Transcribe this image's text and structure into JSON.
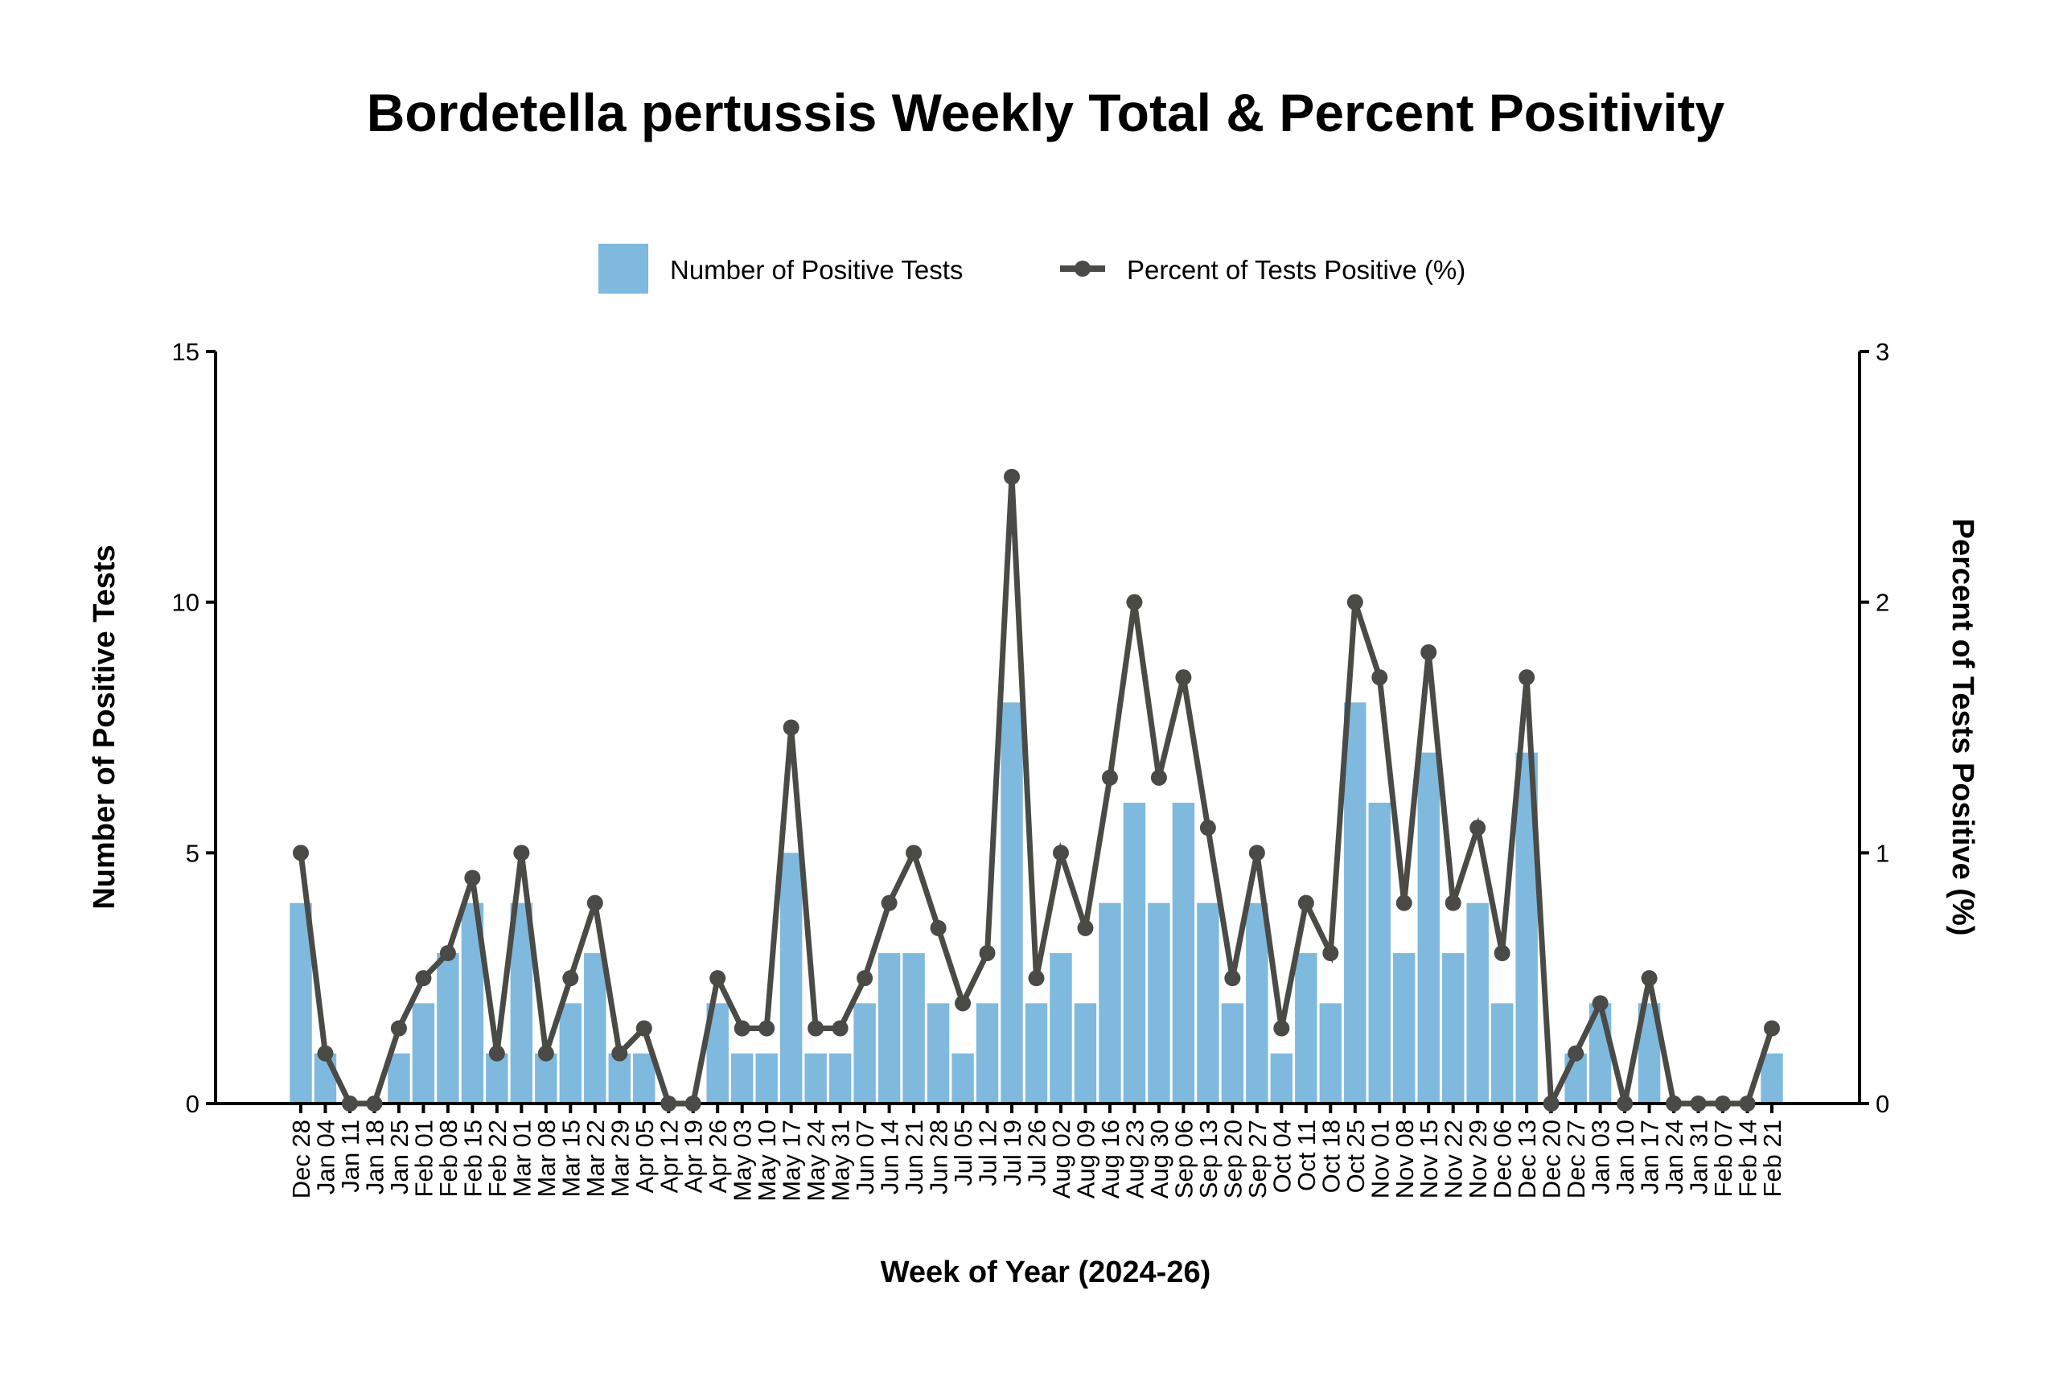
{
  "chart_data": {
    "type": "bar",
    "title": "Bordetella pertussis Weekly Total & Percent Positivity",
    "xlabel": "Week of Year (2024-26)",
    "ylabel": "Number of Positive Tests",
    "y2label": "Percent of Tests Positive (%)",
    "ylim": [
      0,
      15
    ],
    "y2lim": [
      0,
      3
    ],
    "yticks": [
      "0",
      "5",
      "10",
      "15"
    ],
    "y2ticks": [
      "0",
      "1",
      "2",
      "3"
    ],
    "grid": false,
    "legend_position": "top-center",
    "categories": [
      "Dec 28",
      "Jan 04",
      "Jan 11",
      "Jan 18",
      "Jan 25",
      "Feb 01",
      "Feb 08",
      "Feb 15",
      "Feb 22",
      "Mar 01",
      "Mar 08",
      "Mar 15",
      "Mar 22",
      "Mar 29",
      "Apr 05",
      "Apr 12",
      "Apr 19",
      "Apr 26",
      "May 03",
      "May 10",
      "May 17",
      "May 24",
      "May 31",
      "Jun 07",
      "Jun 14",
      "Jun 21",
      "Jun 28",
      "Jul 05",
      "Jul 12",
      "Jul 19",
      "Jul 26",
      "Aug 02",
      "Aug 09",
      "Aug 16",
      "Aug 23",
      "Aug 30",
      "Sep 06",
      "Sep 13",
      "Sep 20",
      "Sep 27",
      "Oct 04",
      "Oct 11",
      "Oct 18",
      "Oct 25",
      "Nov 01",
      "Nov 08",
      "Nov 15",
      "Nov 22",
      "Nov 29",
      "Dec 06",
      "Dec 13",
      "Dec 20",
      "Dec 27",
      "Jan 03",
      "Jan 10",
      "Jan 17",
      "Jan 24",
      "Jan 31",
      "Feb 07",
      "Feb 14",
      "Feb 21"
    ],
    "series": [
      {
        "name": "Number of Positive Tests",
        "type": "bar",
        "axis": "left",
        "color": "#7fb9de",
        "values": [
          4,
          1,
          0,
          0,
          1,
          2,
          3,
          4,
          1,
          4,
          1,
          2,
          3,
          1,
          1,
          0,
          0,
          2,
          1,
          1,
          5,
          1,
          1,
          2,
          3,
          3,
          2,
          1,
          2,
          8,
          2,
          3,
          2,
          4,
          6,
          4,
          6,
          4,
          2,
          4,
          1,
          3,
          2,
          8,
          6,
          3,
          7,
          3,
          4,
          2,
          7,
          0,
          1,
          2,
          0,
          2,
          0,
          0,
          0,
          0,
          1
        ]
      },
      {
        "name": "Percent of Tests Positive (%)",
        "type": "line",
        "axis": "right",
        "color": "#4a4a46",
        "values": [
          1.0,
          0.2,
          0,
          0,
          0.3,
          0.5,
          0.6,
          0.9,
          0.2,
          1.0,
          0.2,
          0.5,
          0.8,
          0.2,
          0.3,
          0,
          0,
          0.5,
          0.3,
          0.3,
          1.5,
          0.3,
          0.3,
          0.5,
          0.8,
          1.0,
          0.7,
          0.4,
          0.6,
          2.5,
          0.5,
          1.0,
          0.7,
          1.3,
          2.0,
          1.3,
          1.7,
          1.1,
          0.5,
          1.0,
          0.3,
          0.8,
          0.6,
          2.0,
          1.7,
          0.8,
          1.8,
          0.8,
          1.1,
          0.6,
          1.7,
          0,
          0.2,
          0.4,
          0,
          0.5,
          0,
          0,
          0,
          0,
          0.3
        ]
      }
    ]
  }
}
